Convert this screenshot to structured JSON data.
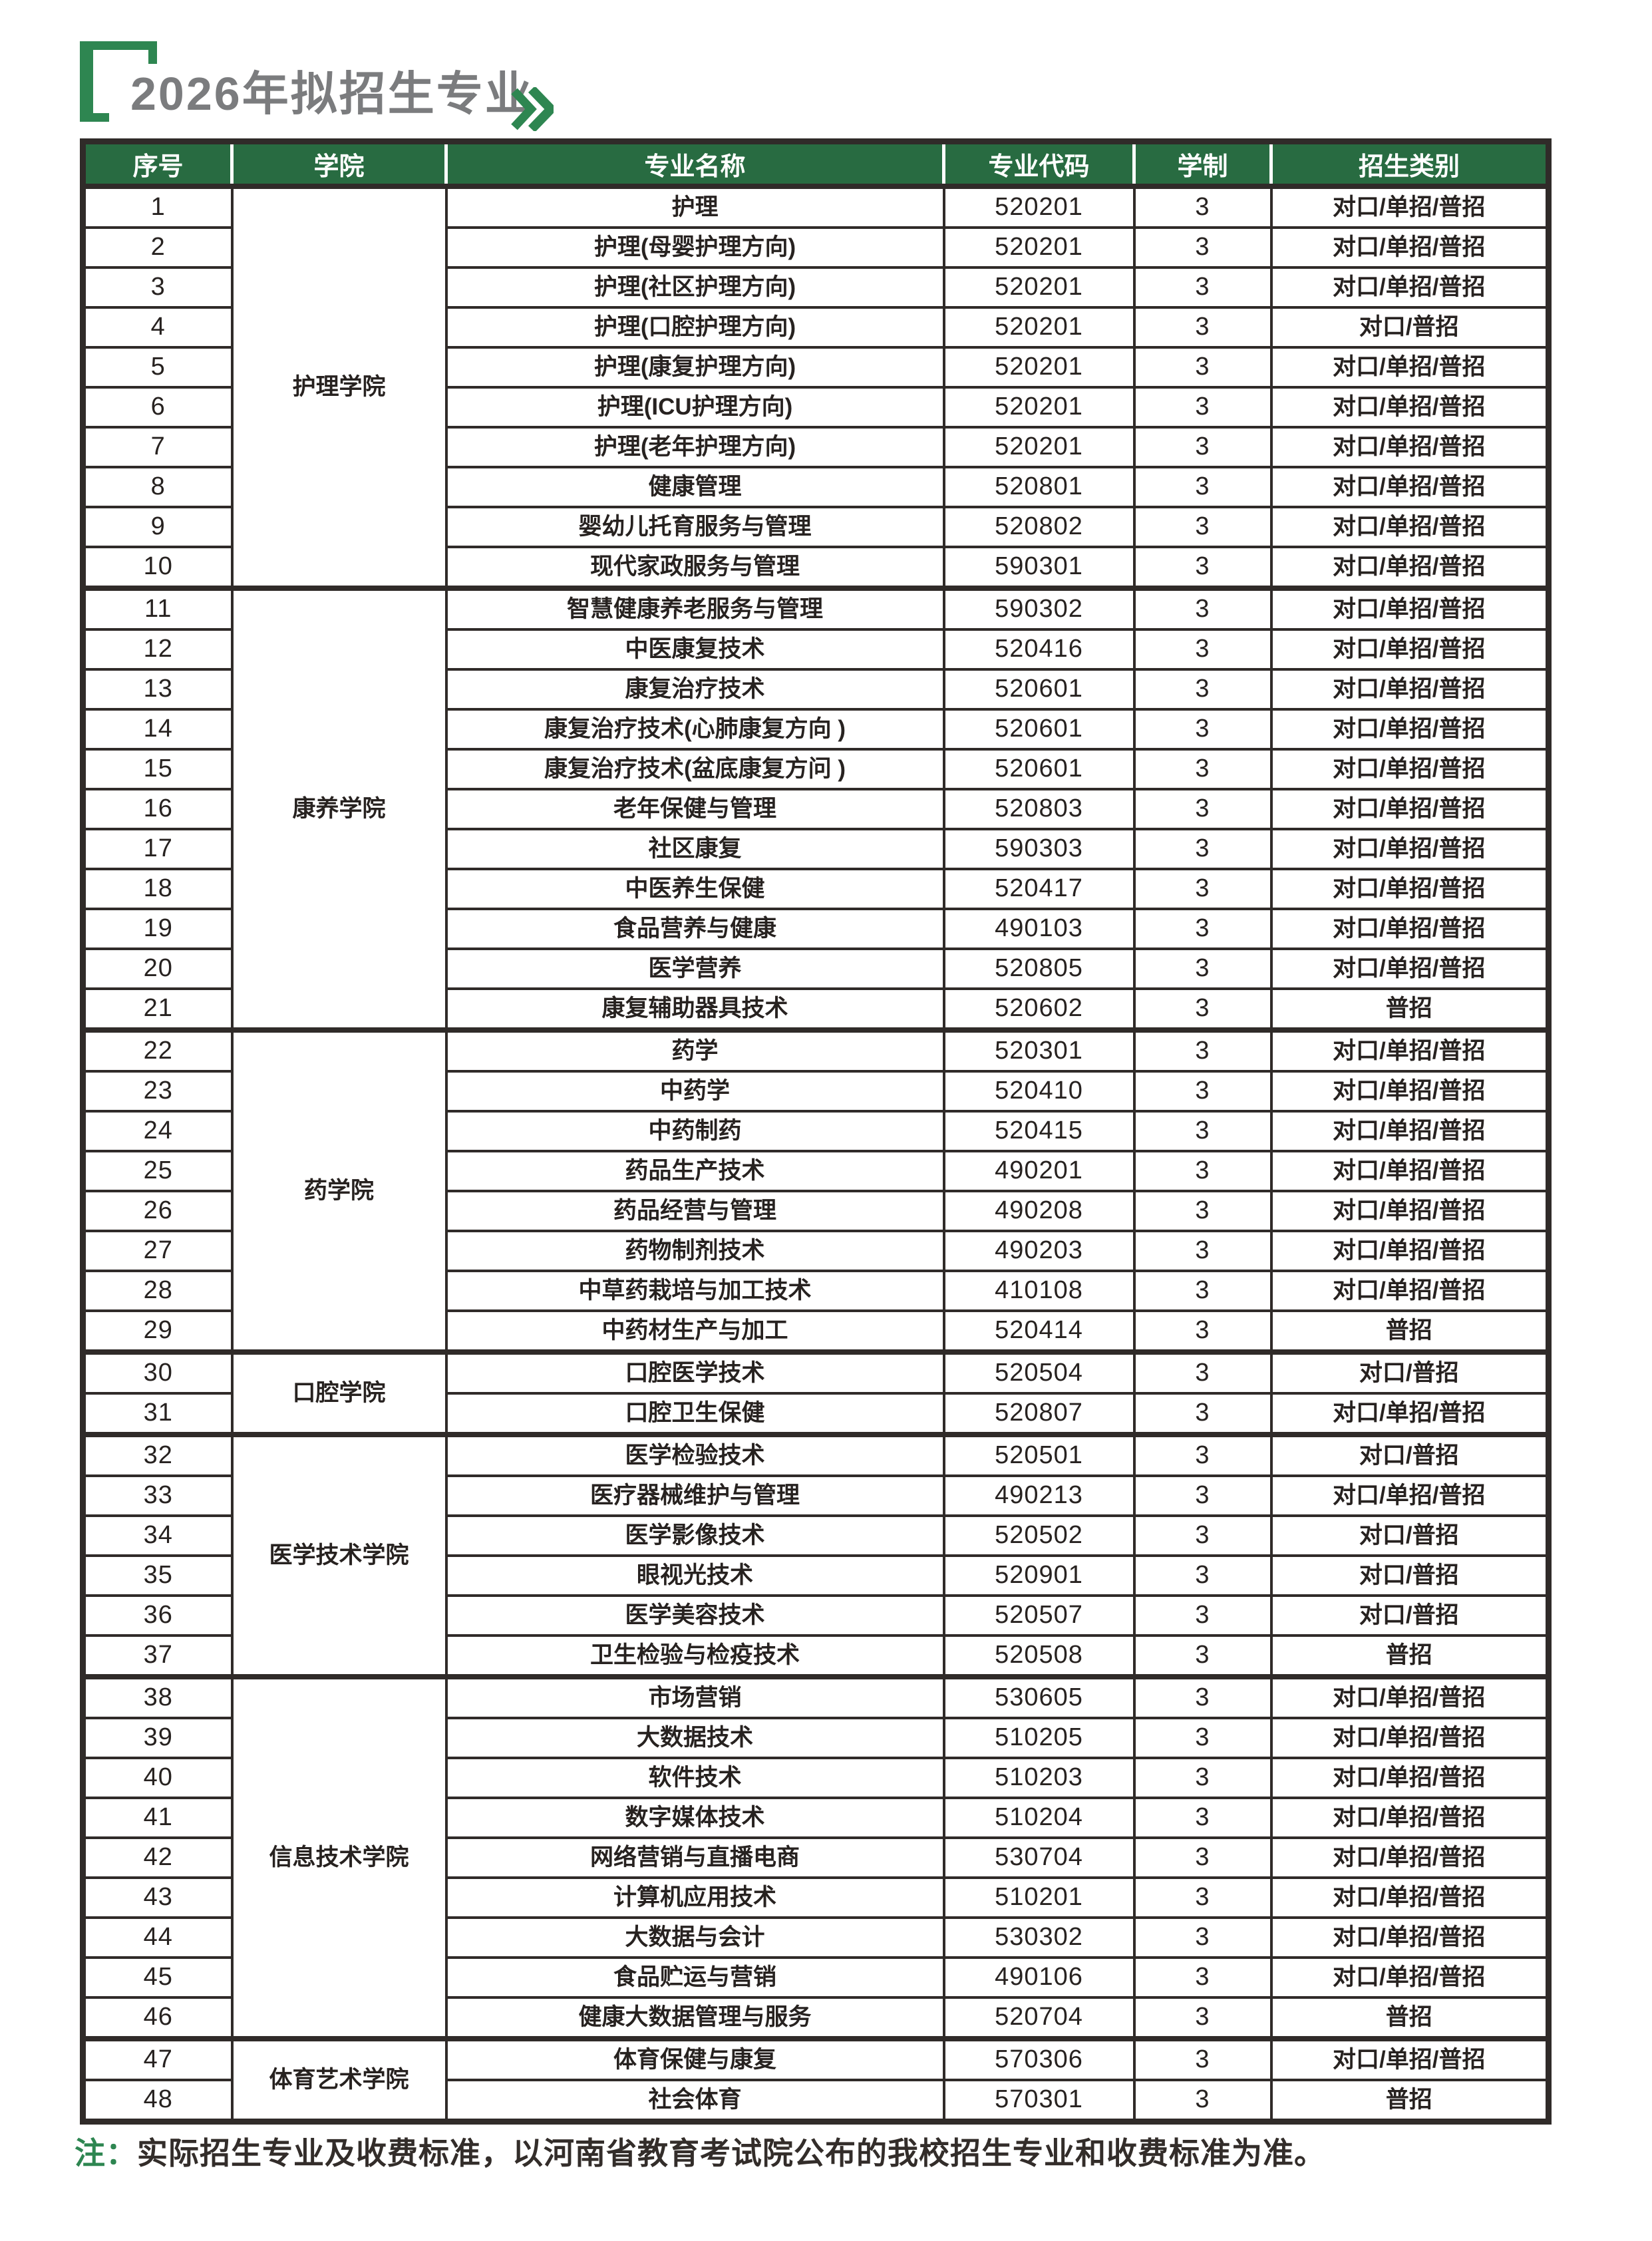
{
  "page": {
    "title": "2026年拟招生专业"
  },
  "colors": {
    "accent_green": "#2e8651",
    "header_green": "#286b41",
    "title_gray": "#7b7c7e",
    "text_dark": "#272220",
    "border_dark": "#302b29"
  },
  "icons": {
    "title_bracket": "corner-bracket",
    "title_chevrons": "double-chevron-right"
  },
  "table": {
    "headers": [
      "序号",
      "学院",
      "专业名称",
      "专业代码",
      "学制",
      "招生类别"
    ],
    "groups": [
      {
        "college": "护理学院",
        "rows": [
          {
            "no": "1",
            "major": "护理",
            "code": "520201",
            "years": "3",
            "category": "对口/单招/普招"
          },
          {
            "no": "2",
            "major": "护理(母婴护理方向)",
            "code": "520201",
            "years": "3",
            "category": "对口/单招/普招"
          },
          {
            "no": "3",
            "major": "护理(社区护理方向)",
            "code": "520201",
            "years": "3",
            "category": "对口/单招/普招"
          },
          {
            "no": "4",
            "major": "护理(口腔护理方向)",
            "code": "520201",
            "years": "3",
            "category": "对口/普招"
          },
          {
            "no": "5",
            "major": "护理(康复护理方向)",
            "code": "520201",
            "years": "3",
            "category": "对口/单招/普招"
          },
          {
            "no": "6",
            "major": "护理(ICU护理方向)",
            "code": "520201",
            "years": "3",
            "category": "对口/单招/普招"
          },
          {
            "no": "7",
            "major": "护理(老年护理方向)",
            "code": "520201",
            "years": "3",
            "category": "对口/单招/普招"
          },
          {
            "no": "8",
            "major": "健康管理",
            "code": "520801",
            "years": "3",
            "category": "对口/单招/普招"
          },
          {
            "no": "9",
            "major": "婴幼儿托育服务与管理",
            "code": "520802",
            "years": "3",
            "category": "对口/单招/普招"
          },
          {
            "no": "10",
            "major": "现代家政服务与管理",
            "code": "590301",
            "years": "3",
            "category": "对口/单招/普招"
          }
        ]
      },
      {
        "college": "康养学院",
        "rows": [
          {
            "no": "11",
            "major": "智慧健康养老服务与管理",
            "code": "590302",
            "years": "3",
            "category": "对口/单招/普招"
          },
          {
            "no": "12",
            "major": "中医康复技术",
            "code": "520416",
            "years": "3",
            "category": "对口/单招/普招"
          },
          {
            "no": "13",
            "major": "康复治疗技术",
            "code": "520601",
            "years": "3",
            "category": "对口/单招/普招"
          },
          {
            "no": "14",
            "major": "康复治疗技术(心肺康复方向 )",
            "code": "520601",
            "years": "3",
            "category": "对口/单招/普招"
          },
          {
            "no": "15",
            "major": "康复治疗技术(盆底康复方问 )",
            "code": "520601",
            "years": "3",
            "category": "对口/单招/普招"
          },
          {
            "no": "16",
            "major": "老年保健与管理",
            "code": "520803",
            "years": "3",
            "category": "对口/单招/普招"
          },
          {
            "no": "17",
            "major": "社区康复",
            "code": "590303",
            "years": "3",
            "category": "对口/单招/普招"
          },
          {
            "no": "18",
            "major": "中医养生保健",
            "code": "520417",
            "years": "3",
            "category": "对口/单招/普招"
          },
          {
            "no": "19",
            "major": "食品营养与健康",
            "code": "490103",
            "years": "3",
            "category": "对口/单招/普招"
          },
          {
            "no": "20",
            "major": "医学营养",
            "code": "520805",
            "years": "3",
            "category": "对口/单招/普招"
          },
          {
            "no": "21",
            "major": "康复辅助器具技术",
            "code": "520602",
            "years": "3",
            "category": "普招"
          }
        ]
      },
      {
        "college": "药学院",
        "rows": [
          {
            "no": "22",
            "major": "药学",
            "code": "520301",
            "years": "3",
            "category": "对口/单招/普招"
          },
          {
            "no": "23",
            "major": "中药学",
            "code": "520410",
            "years": "3",
            "category": "对口/单招/普招"
          },
          {
            "no": "24",
            "major": "中药制药",
            "code": "520415",
            "years": "3",
            "category": "对口/单招/普招"
          },
          {
            "no": "25",
            "major": "药品生产技术",
            "code": "490201",
            "years": "3",
            "category": "对口/单招/普招"
          },
          {
            "no": "26",
            "major": "药品经营与管理",
            "code": "490208",
            "years": "3",
            "category": "对口/单招/普招"
          },
          {
            "no": "27",
            "major": "药物制剂技术",
            "code": "490203",
            "years": "3",
            "category": "对口/单招/普招"
          },
          {
            "no": "28",
            "major": "中草药栽培与加工技术",
            "code": "410108",
            "years": "3",
            "category": "对口/单招/普招"
          },
          {
            "no": "29",
            "major": "中药材生产与加工",
            "code": "520414",
            "years": "3",
            "category": "普招"
          }
        ]
      },
      {
        "college": "口腔学院",
        "rows": [
          {
            "no": "30",
            "major": "口腔医学技术",
            "code": "520504",
            "years": "3",
            "category": "对口/普招"
          },
          {
            "no": "31",
            "major": "口腔卫生保健",
            "code": "520807",
            "years": "3",
            "category": "对口/单招/普招"
          }
        ]
      },
      {
        "college": "医学技术学院",
        "rows": [
          {
            "no": "32",
            "major": "医学检验技术",
            "code": "520501",
            "years": "3",
            "category": "对口/普招"
          },
          {
            "no": "33",
            "major": "医疗器械维护与管理",
            "code": "490213",
            "years": "3",
            "category": "对口/单招/普招"
          },
          {
            "no": "34",
            "major": "医学影像技术",
            "code": "520502",
            "years": "3",
            "category": "对口/普招"
          },
          {
            "no": "35",
            "major": "眼视光技术",
            "code": "520901",
            "years": "3",
            "category": "对口/普招"
          },
          {
            "no": "36",
            "major": "医学美容技术",
            "code": "520507",
            "years": "3",
            "category": "对口/普招"
          },
          {
            "no": "37",
            "major": "卫生检验与检疫技术",
            "code": "520508",
            "years": "3",
            "category": "普招"
          }
        ]
      },
      {
        "college": "信息技术学院",
        "rows": [
          {
            "no": "38",
            "major": "市场营销",
            "code": "530605",
            "years": "3",
            "category": "对口/单招/普招"
          },
          {
            "no": "39",
            "major": "大数据技术",
            "code": "510205",
            "years": "3",
            "category": "对口/单招/普招"
          },
          {
            "no": "40",
            "major": "软件技术",
            "code": "510203",
            "years": "3",
            "category": "对口/单招/普招"
          },
          {
            "no": "41",
            "major": "数字媒体技术",
            "code": "510204",
            "years": "3",
            "category": "对口/单招/普招"
          },
          {
            "no": "42",
            "major": "网络营销与直播电商",
            "code": "530704",
            "years": "3",
            "category": "对口/单招/普招"
          },
          {
            "no": "43",
            "major": "计算机应用技术",
            "code": "510201",
            "years": "3",
            "category": "对口/单招/普招"
          },
          {
            "no": "44",
            "major": "大数据与会计",
            "code": "530302",
            "years": "3",
            "category": "对口/单招/普招"
          },
          {
            "no": "45",
            "major": "食品贮运与营销",
            "code": "490106",
            "years": "3",
            "category": "对口/单招/普招"
          },
          {
            "no": "46",
            "major": "健康大数据管理与服务",
            "code": "520704",
            "years": "3",
            "category": "普招"
          }
        ]
      },
      {
        "college": "体育艺术学院",
        "rows": [
          {
            "no": "47",
            "major": "体育保健与康复",
            "code": "570306",
            "years": "3",
            "category": "对口/单招/普招"
          },
          {
            "no": "48",
            "major": "社会体育",
            "code": "570301",
            "years": "3",
            "category": "普招"
          }
        ]
      }
    ]
  },
  "note": {
    "prefix": "注：",
    "text": "实际招生专业及收费标准，以河南省教育考试院公布的我校招生专业和收费标准为准。"
  }
}
